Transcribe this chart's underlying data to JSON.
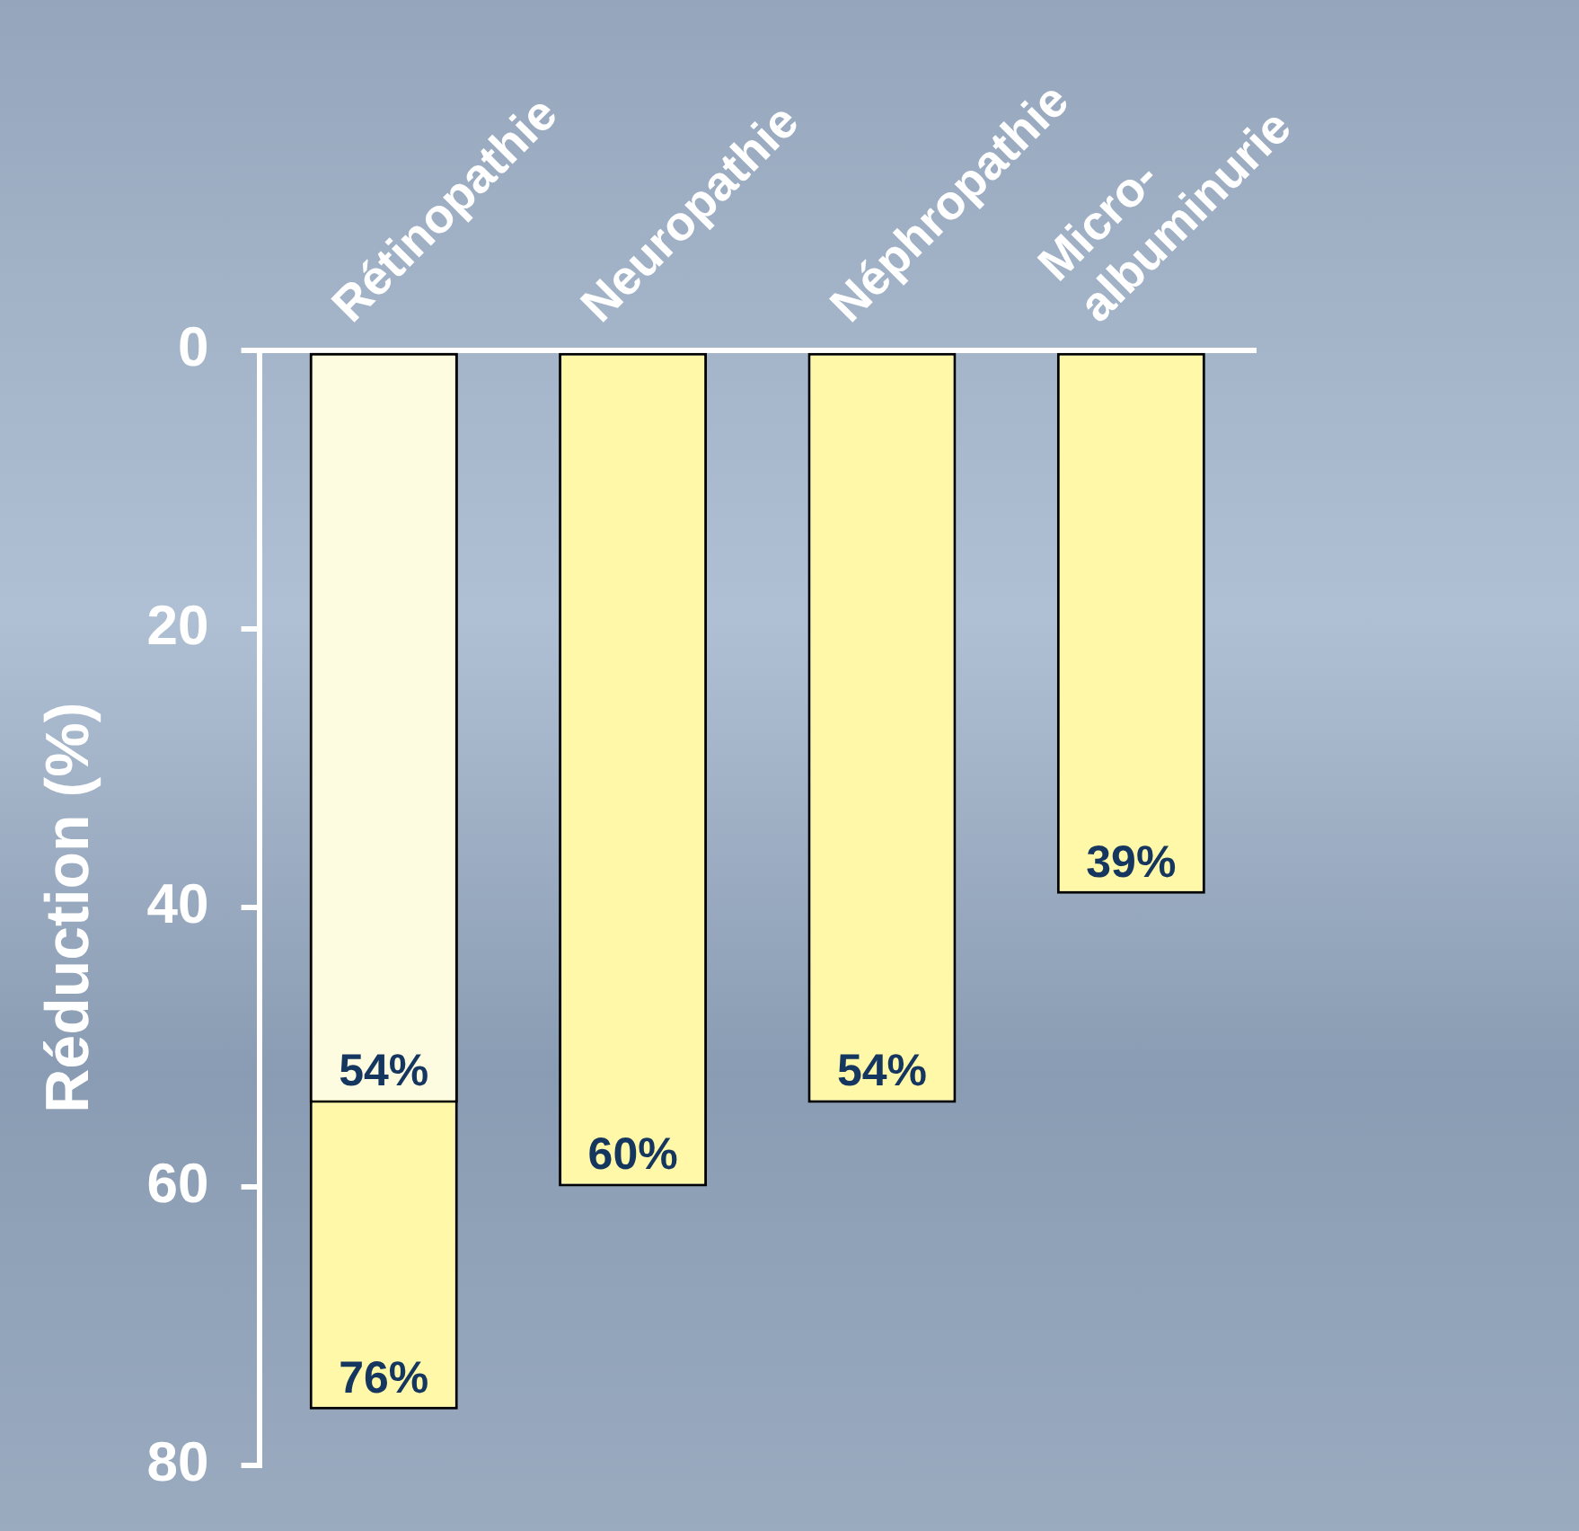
{
  "chart_data": {
    "type": "bar",
    "ylabel": "Réduction (%)",
    "categories": [
      "Rétinopathie",
      "Neuropathie",
      "Néphropathie",
      "Micro-\nalbuminurie"
    ],
    "series": [
      {
        "colors": [
          "#fdfbe0",
          "#fff8a8",
          "#fff8a8",
          "#fff8a8"
        ],
        "values": [
          54,
          60,
          54,
          39
        ],
        "value_labels": [
          "54%",
          "60%",
          "54%",
          "39%"
        ]
      },
      {
        "color": "#fff8a8",
        "values": [
          76,
          null,
          null,
          null
        ],
        "value_labels": [
          "76%",
          null,
          null,
          null
        ]
      }
    ],
    "ylim": [
      80,
      0
    ],
    "yticks": [
      0,
      20,
      40,
      60,
      80
    ],
    "grid": false,
    "legend": false
  }
}
